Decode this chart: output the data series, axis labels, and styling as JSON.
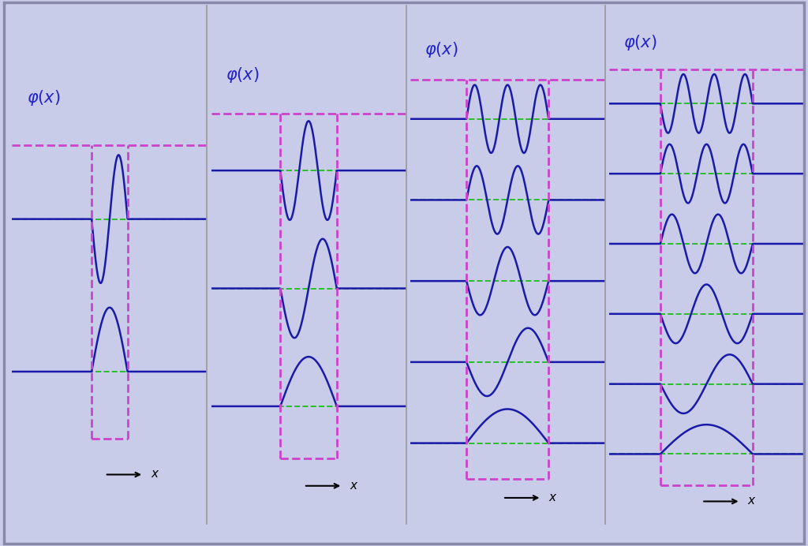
{
  "fig_bg": "#c8cce8",
  "panel_bg": "#fffff0",
  "line_color": "#1a1aaa",
  "dashed_color": "#cc44cc",
  "green_color": "#22bb22",
  "title_color": "#2222cc",
  "panels": [
    {
      "n_states": 2,
      "L": 0.7,
      "kappa": 3.5,
      "k_scale": 1.8
    },
    {
      "n_states": 3,
      "L": 1.1,
      "kappa": 2.8,
      "k_scale": 1.5
    },
    {
      "n_states": 5,
      "L": 1.6,
      "kappa": 2.2,
      "k_scale": 1.4
    },
    {
      "n_states": 6,
      "L": 1.8,
      "kappa": 1.9,
      "k_scale": 1.3
    }
  ]
}
